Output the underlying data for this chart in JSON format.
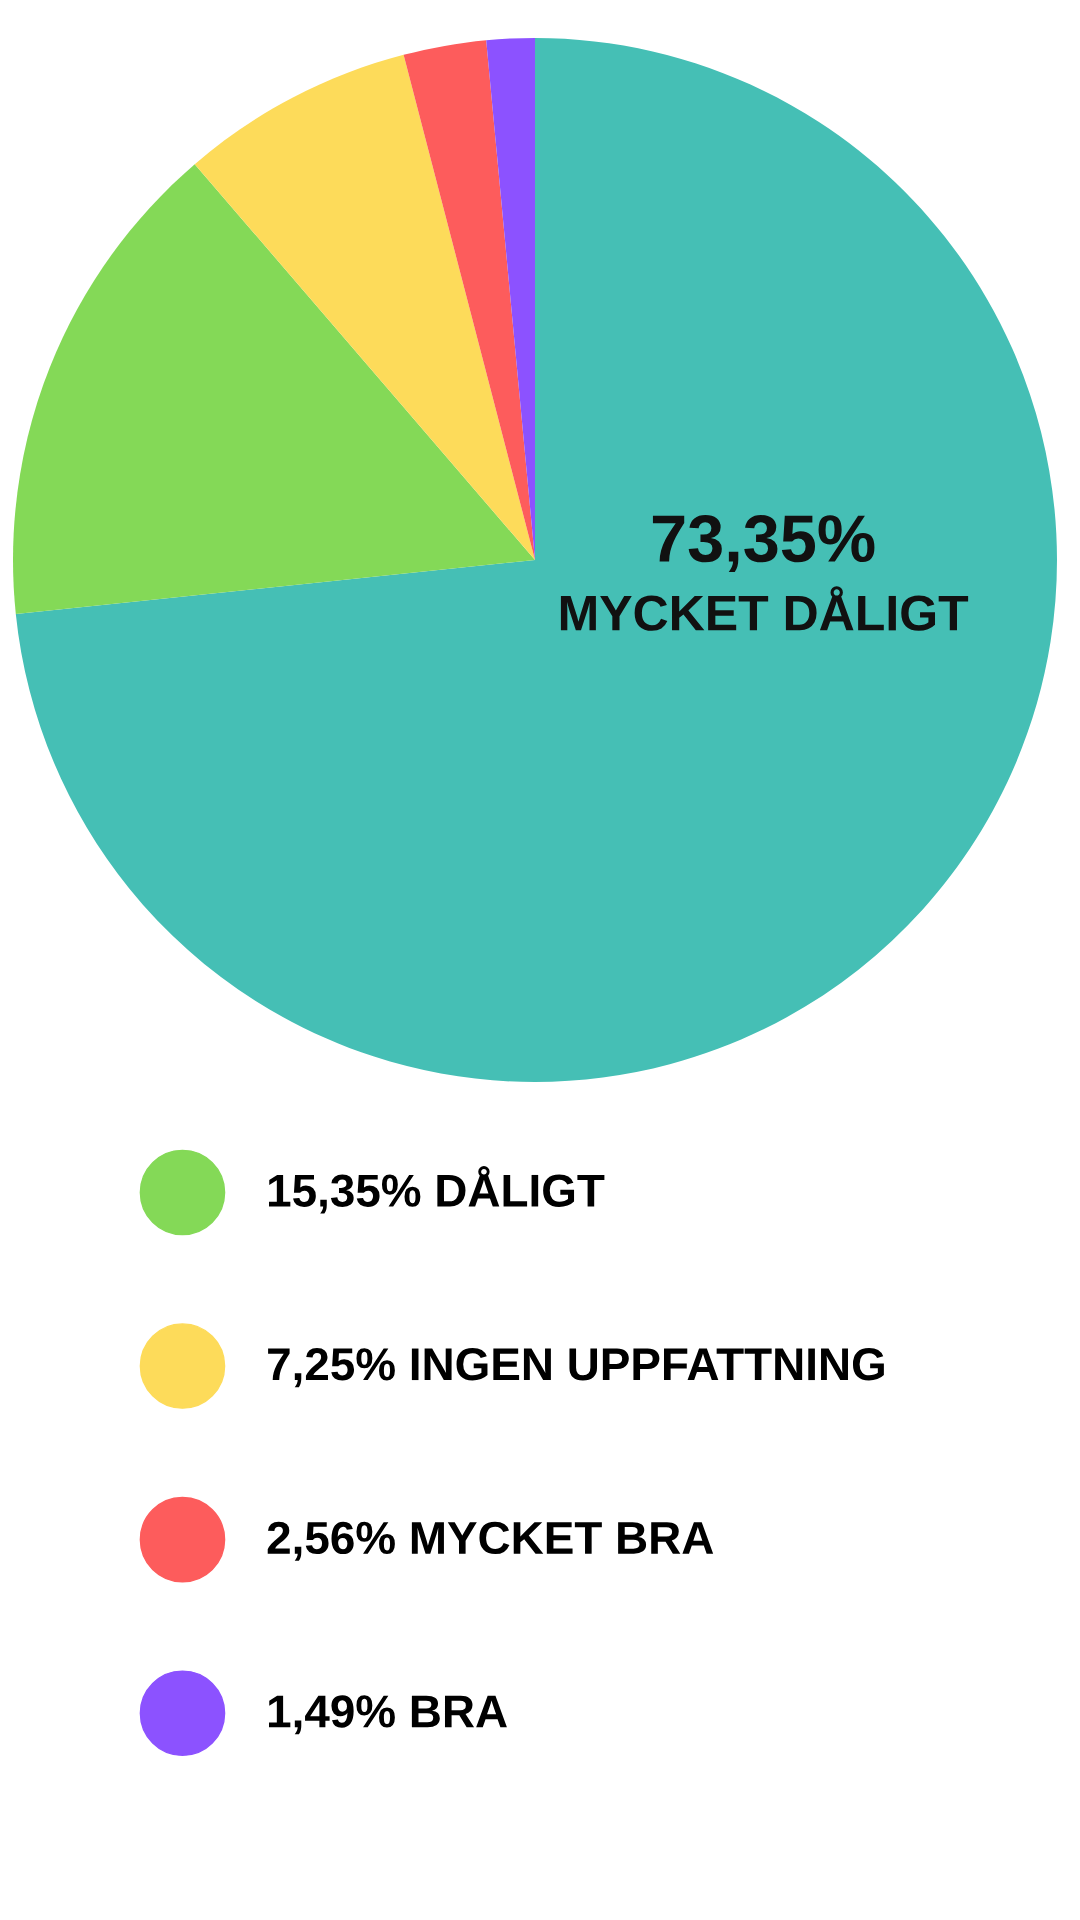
{
  "chart_data": {
    "type": "pie",
    "categories": [
      "MYCKET DÅLIGT",
      "DÅLIGT",
      "INGEN UPPFATTNING",
      "MYCKET BRA",
      "BRA"
    ],
    "values": [
      73.35,
      15.35,
      7.25,
      2.56,
      1.49
    ],
    "value_labels": [
      "73,35%",
      "15,35%",
      "7,25%",
      "2,56%",
      "1,49%"
    ],
    "colors": [
      "#45bfb5",
      "#84d957",
      "#fddb5a",
      "#fd5c5c",
      "#8c52ff"
    ],
    "legend": "bottom"
  }
}
